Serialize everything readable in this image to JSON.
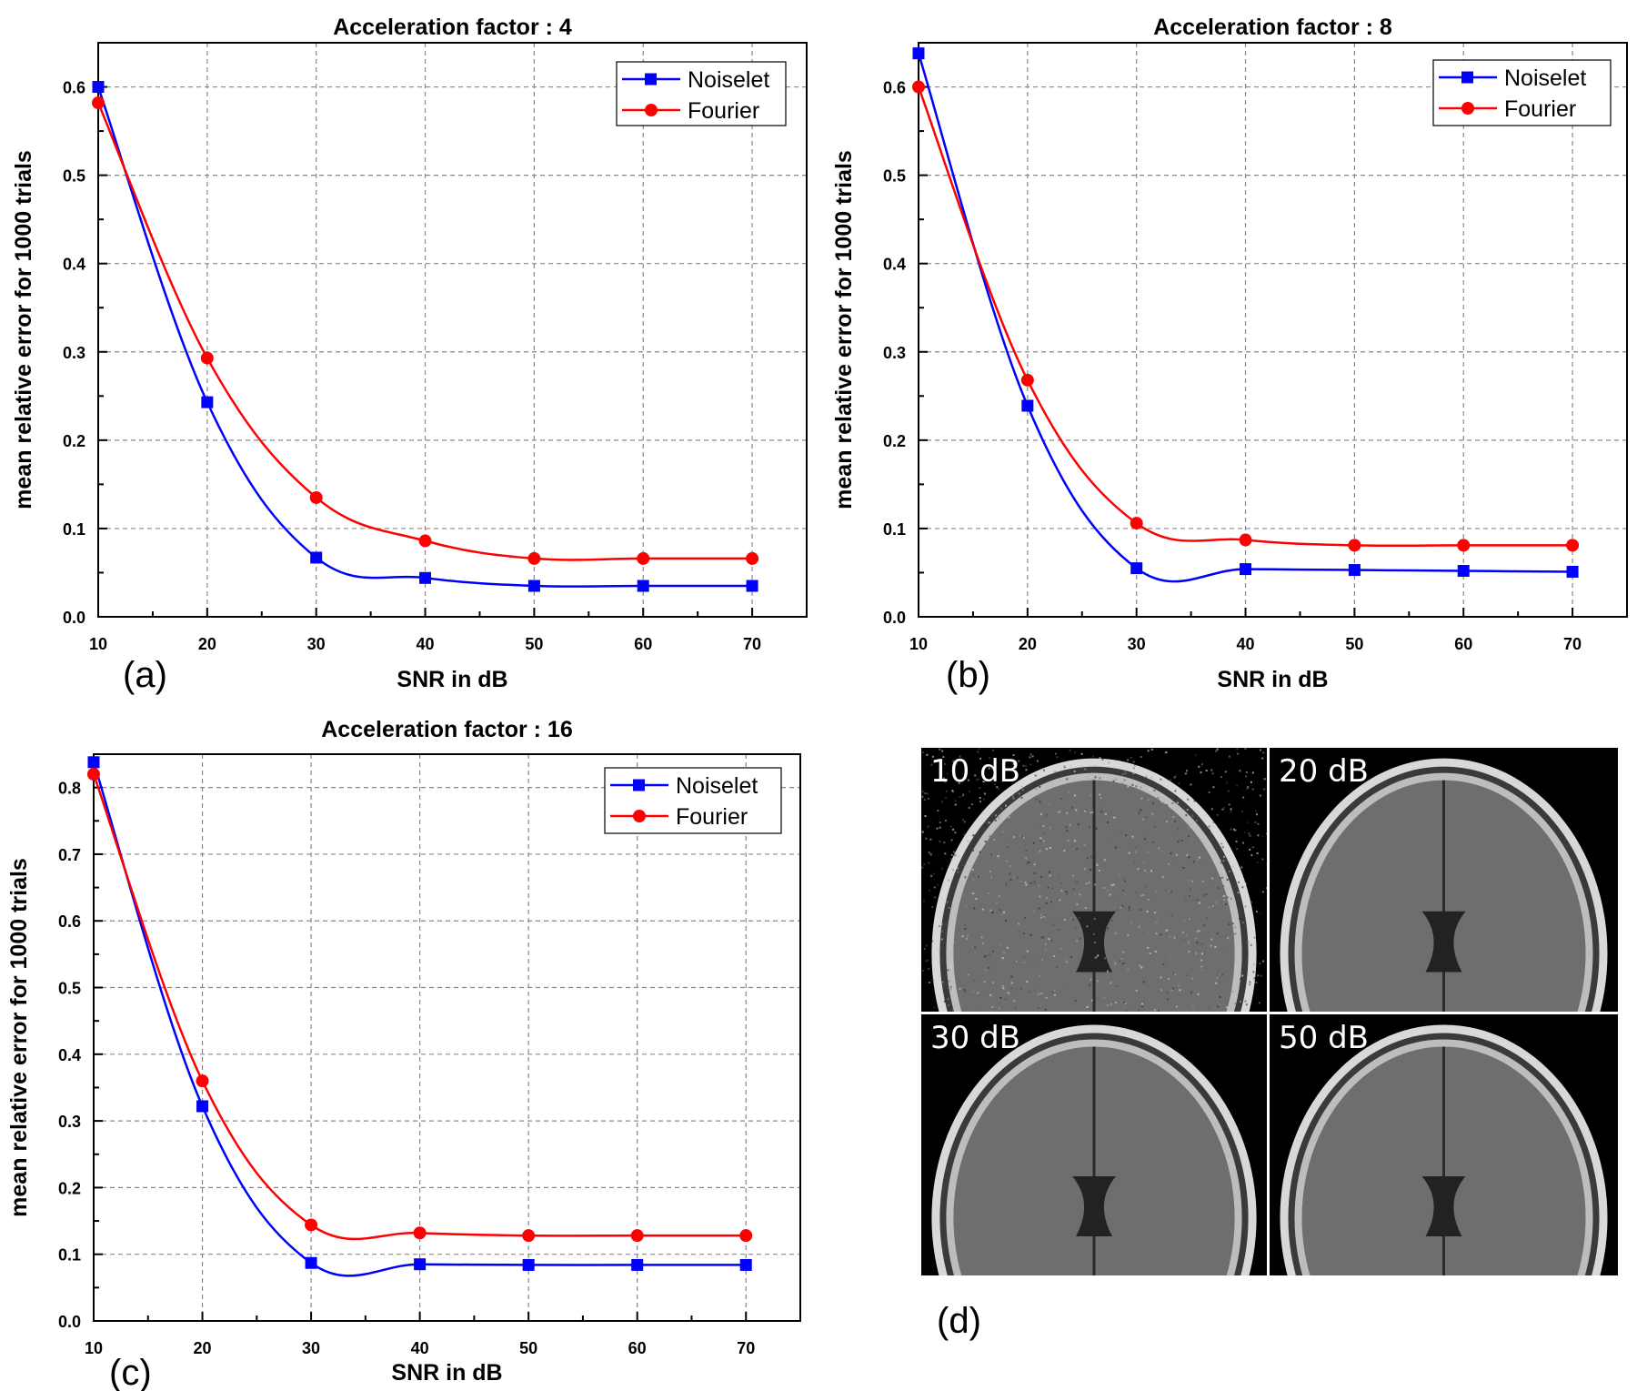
{
  "chart_data": [
    {
      "type": "line",
      "id": "a",
      "title": "Acceleration factor : 4",
      "xlabel": "SNR in dB",
      "ylabel": "mean relative error for 1000 trials",
      "subfig": "(a)",
      "x": [
        10,
        20,
        30,
        40,
        50,
        60,
        70
      ],
      "xticks": [
        10,
        20,
        30,
        40,
        50,
        60,
        70
      ],
      "yticks": [
        "0.0",
        "0.1",
        "0.2",
        "0.3",
        "0.4",
        "0.5",
        "0.6"
      ],
      "xlim": [
        10,
        75
      ],
      "ylim": [
        0,
        0.65
      ],
      "legend": "top-right",
      "series": [
        {
          "name": "Noiselet",
          "color": "#0000ff",
          "marker": "square",
          "values": [
            0.6,
            0.243,
            0.067,
            0.044,
            0.035,
            0.035,
            0.035
          ]
        },
        {
          "name": "Fourier",
          "color": "#ff0000",
          "marker": "circle",
          "values": [
            0.582,
            0.293,
            0.135,
            0.086,
            0.066,
            0.066,
            0.066
          ]
        }
      ]
    },
    {
      "type": "line",
      "id": "b",
      "title": "Acceleration factor : 8",
      "xlabel": "SNR in dB",
      "ylabel": "mean relative error for 1000 trials",
      "subfig": "(b)",
      "x": [
        10,
        20,
        30,
        40,
        50,
        60,
        70
      ],
      "xticks": [
        10,
        20,
        30,
        40,
        50,
        60,
        70
      ],
      "yticks": [
        "0.0",
        "0.1",
        "0.2",
        "0.3",
        "0.4",
        "0.5",
        "0.6"
      ],
      "xlim": [
        10,
        75
      ],
      "ylim": [
        0,
        0.65
      ],
      "legend": "top-right",
      "series": [
        {
          "name": "Noiselet",
          "color": "#0000ff",
          "marker": "square",
          "values": [
            0.638,
            0.239,
            0.055,
            0.054,
            0.053,
            0.052,
            0.051
          ]
        },
        {
          "name": "Fourier",
          "color": "#ff0000",
          "marker": "circle",
          "values": [
            0.6,
            0.268,
            0.106,
            0.087,
            0.081,
            0.081,
            0.081
          ]
        }
      ]
    },
    {
      "type": "line",
      "id": "c",
      "title": "Acceleration factor : 16",
      "xlabel": "SNR in dB",
      "ylabel": "mean relative error for 1000 trials",
      "subfig": "(c)",
      "x": [
        10,
        20,
        30,
        40,
        50,
        60,
        70
      ],
      "xticks": [
        10,
        20,
        30,
        40,
        50,
        60,
        70
      ],
      "yticks": [
        "0.0",
        "0.1",
        "0.2",
        "0.3",
        "0.4",
        "0.5",
        "0.6",
        "0.7",
        "0.8"
      ],
      "xlim": [
        10,
        75
      ],
      "ylim": [
        0,
        0.85
      ],
      "legend": "top-right",
      "series": [
        {
          "name": "Noiselet",
          "color": "#0000ff",
          "marker": "square",
          "values": [
            0.838,
            0.322,
            0.087,
            0.085,
            0.084,
            0.084,
            0.084
          ]
        },
        {
          "name": "Fourier",
          "color": "#ff0000",
          "marker": "circle",
          "values": [
            0.82,
            0.36,
            0.144,
            0.132,
            0.128,
            0.128,
            0.128
          ]
        }
      ]
    }
  ],
  "mri_panel": {
    "subfig": "(d)",
    "images": [
      {
        "label": "10 dB"
      },
      {
        "label": "20 dB"
      },
      {
        "label": "30 dB"
      },
      {
        "label": "50 dB"
      }
    ]
  }
}
